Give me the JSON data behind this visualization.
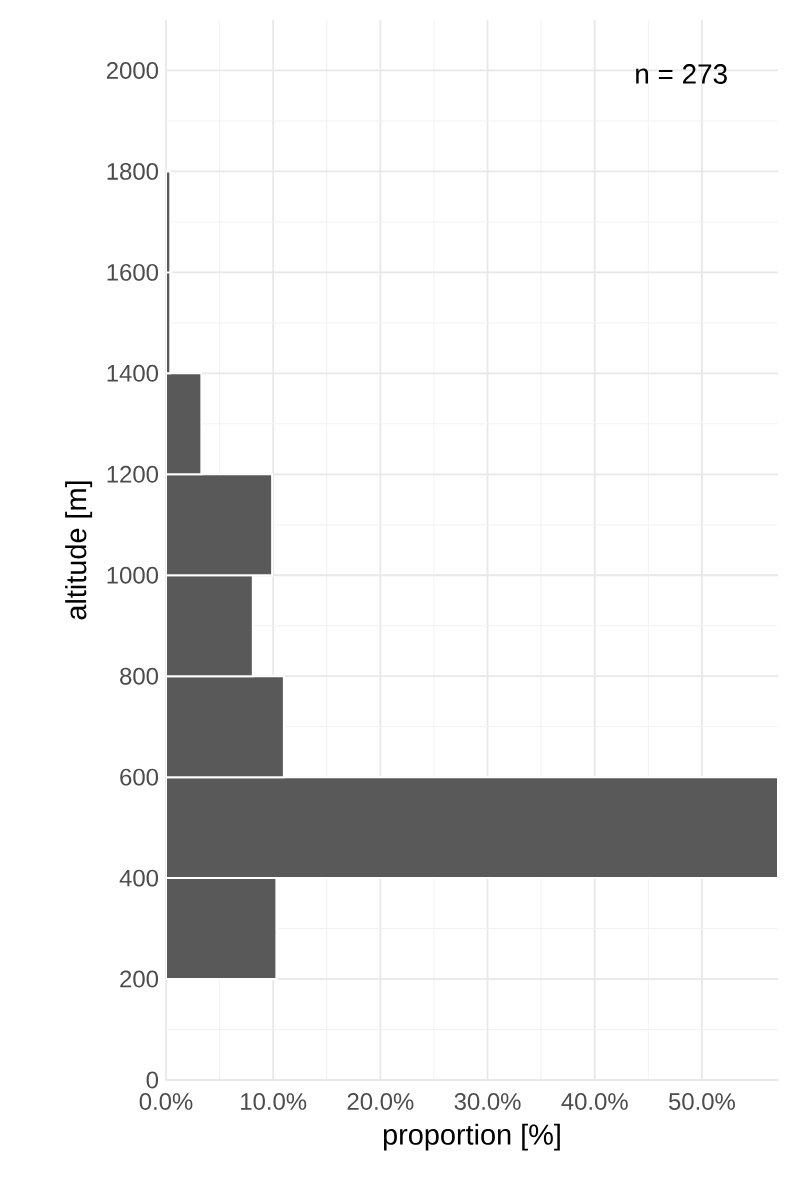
{
  "chart_data": {
    "type": "histogram",
    "orientation": "horizontal",
    "xlabel": "proportion [%]",
    "ylabel": "altitude [m]",
    "bins": [
      200,
      400,
      600,
      800,
      1000,
      1200,
      1400,
      1600,
      1800
    ],
    "values": [
      10.3,
      57.1,
      11.0,
      8.1,
      9.9,
      3.3,
      0.4,
      0.4
    ],
    "color": "#595959",
    "xlim": [
      0,
      57.1
    ],
    "ylim": [
      0,
      2100
    ],
    "xticks": [
      {
        "value": 0,
        "label": "0.0%"
      },
      {
        "value": 10,
        "label": "10.0%"
      },
      {
        "value": 20,
        "label": "20.0%"
      },
      {
        "value": 30,
        "label": "30.0%"
      },
      {
        "value": 40,
        "label": "40.0%"
      },
      {
        "value": 50,
        "label": "50.0%"
      }
    ],
    "yticks": [
      0,
      200,
      400,
      600,
      800,
      1000,
      1200,
      1400,
      1600,
      1800,
      2000
    ],
    "grid": true,
    "annotations": [
      "n = 273"
    ]
  }
}
